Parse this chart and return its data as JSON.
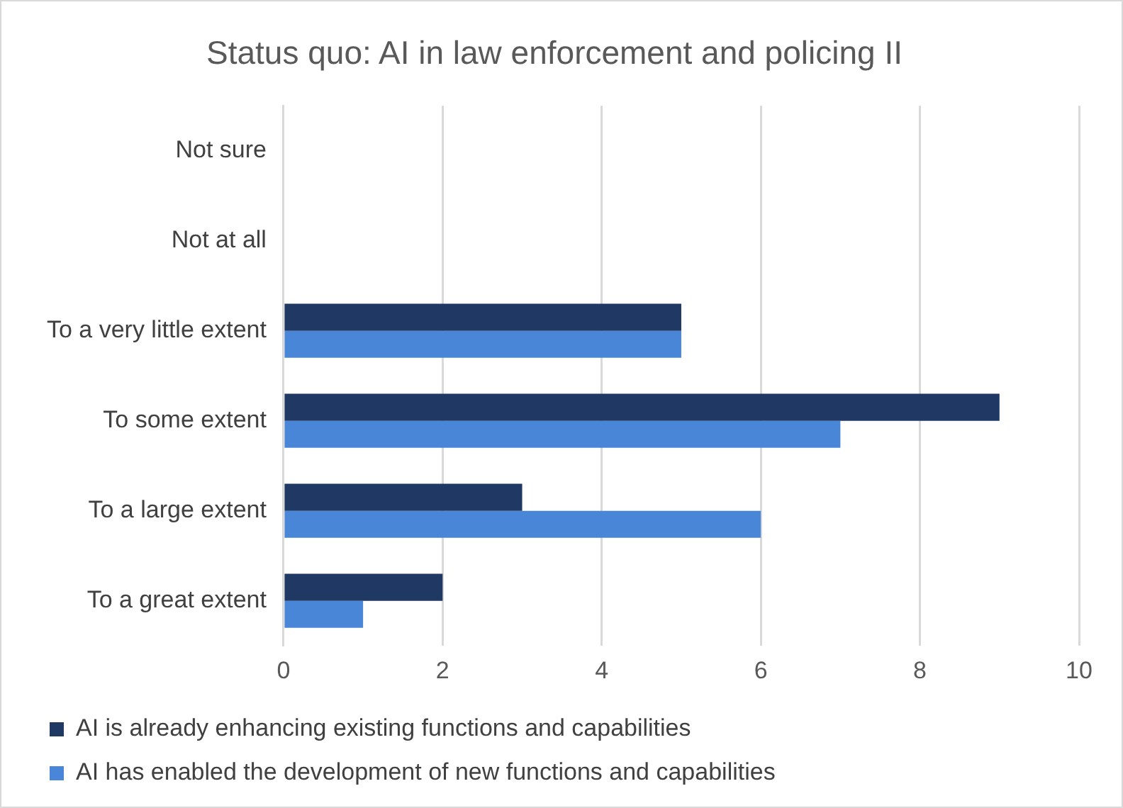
{
  "chart_data": {
    "type": "bar",
    "orientation": "horizontal",
    "title": "Status quo: AI in law enforcement and policing II",
    "categories": [
      "Not sure",
      "Not at all",
      "To a very little extent",
      "To some extent",
      "To a large extent",
      "To a great extent"
    ],
    "series": [
      {
        "name": "AI is already enhancing existing functions and capabilities",
        "color": "#1f3864",
        "values": [
          0,
          0,
          5,
          9,
          3,
          2
        ]
      },
      {
        "name": "AI has enabled the development of new functions and capabilities",
        "color": "#4a86d8",
        "values": [
          0,
          0,
          5,
          7,
          6,
          1
        ]
      }
    ],
    "xlim": [
      0,
      10
    ],
    "xticks": [
      0,
      2,
      4,
      6,
      8,
      10
    ],
    "grid": "x",
    "legend": "bottom"
  }
}
